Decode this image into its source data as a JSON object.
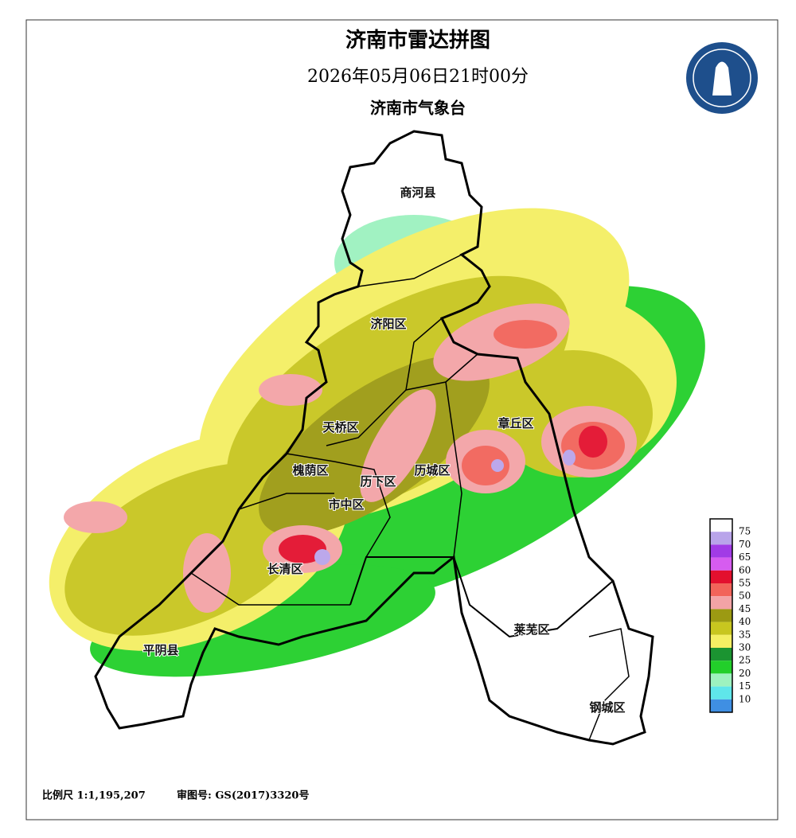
{
  "header": {
    "title": "济南市雷达拼图",
    "datetime": "2026年05月06日21时00分",
    "source": "济南市气象台"
  },
  "districts": [
    "商河县",
    "济阳区",
    "天桥区",
    "槐荫区",
    "历下区",
    "历城区",
    "章丘区",
    "市中区",
    "长清区",
    "平阴县",
    "莱芜区",
    "钢城区"
  ],
  "legend": {
    "items": [
      {
        "value": 75,
        "color": "#ffffff"
      },
      {
        "value": 70,
        "color": "#b9a4ea"
      },
      {
        "value": 65,
        "color": "#a13be6"
      },
      {
        "value": 60,
        "color": "#d65cf0"
      },
      {
        "value": 55,
        "color": "#e3102e"
      },
      {
        "value": 50,
        "color": "#f2645a"
      },
      {
        "value": 45,
        "color": "#f3a3a6"
      },
      {
        "value": 40,
        "color": "#9c9a12"
      },
      {
        "value": 35,
        "color": "#c8c61f"
      },
      {
        "value": 30,
        "color": "#f4ef63"
      },
      {
        "value": 25,
        "color": "#1b9431"
      },
      {
        "value": 20,
        "color": "#22cf2a"
      },
      {
        "value": 15,
        "color": "#9df2bf"
      },
      {
        "value": 10,
        "color": "#5fe6ea"
      }
    ],
    "bottom_color": "#3f8fe3"
  },
  "footer": {
    "scale": "比例尺 1:1,195,207",
    "review": "审图号: GS(2017)3320号"
  }
}
